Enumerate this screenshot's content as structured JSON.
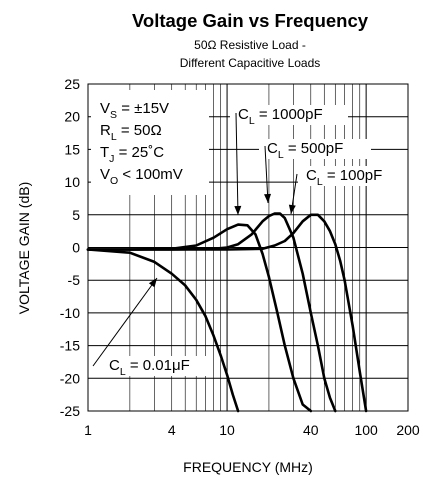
{
  "chart_data": {
    "type": "line",
    "title": "Voltage Gain vs Frequency",
    "subtitle_lines": [
      "50Ω Resistive Load -",
      "Different Capacitive Loads"
    ],
    "xlabel": "FREQUENCY (MHz)",
    "ylabel": "VOLTAGE GAIN (dB)",
    "x_scale": "log",
    "xlim": [
      1,
      200
    ],
    "ylim": [
      -25,
      25
    ],
    "x_ticks": [
      1,
      4,
      10,
      40,
      100,
      200
    ],
    "x_tick_labels": [
      "1",
      "4",
      "10",
      "40",
      "100",
      "200"
    ],
    "y_ticks": [
      25,
      20,
      15,
      10,
      5,
      0,
      -5,
      -10,
      -15,
      -20,
      -25
    ],
    "y_tick_labels": [
      "25",
      "20",
      "15",
      "10",
      "5",
      "0",
      "-5",
      "-10",
      "-15",
      "-20",
      "-25"
    ],
    "grid": true,
    "conditions": [
      {
        "main": "V",
        "sub": "S",
        "rest": " = ±15V"
      },
      {
        "main": "R",
        "sub": "L",
        "rest": " = 50Ω"
      },
      {
        "main": "T",
        "sub": "J",
        "rest": " = 25˚C"
      },
      {
        "main": "V",
        "sub": "O",
        "rest": " < 100mV"
      }
    ],
    "series": [
      {
        "label_main": "C",
        "label_sub": "L",
        "label_rest": " = 1000pF",
        "x": [
          1,
          2,
          4,
          6,
          8,
          10,
          12,
          14,
          16,
          18,
          20,
          23,
          26,
          30,
          35,
          40
        ],
        "y": [
          -0.3,
          -0.3,
          -0.2,
          0.3,
          1.5,
          2.8,
          3.5,
          3.4,
          2.0,
          -1.0,
          -4.5,
          -10.0,
          -15.0,
          -20.0,
          -24.0,
          -25.0
        ]
      },
      {
        "label_main": "C",
        "label_sub": "L",
        "label_rest": " = 500pF",
        "x": [
          1,
          4,
          8,
          10,
          12,
          15,
          18,
          20,
          22,
          24,
          26,
          30,
          35,
          40,
          45,
          50,
          55,
          60
        ],
        "y": [
          -0.3,
          -0.3,
          -0.2,
          0.0,
          0.5,
          2.0,
          4.0,
          4.8,
          5.2,
          5.2,
          4.5,
          1.5,
          -4.0,
          -10.0,
          -15.0,
          -20.0,
          -23.0,
          -25.0
        ]
      },
      {
        "label_main": "C",
        "label_sub": "L",
        "label_rest": " = 100pF",
        "x": [
          1,
          10,
          18,
          22,
          26,
          30,
          35,
          40,
          45,
          50,
          55,
          60,
          65,
          70,
          80,
          90,
          100
        ],
        "y": [
          -0.3,
          -0.3,
          -0.2,
          0.3,
          1.0,
          2.2,
          4.0,
          5.0,
          5.0,
          4.0,
          2.5,
          0.5,
          -2.0,
          -5.0,
          -12.0,
          -19.0,
          -25.0
        ]
      },
      {
        "label_main": "C",
        "label_sub": "L",
        "label_rest": " = 0.01μF",
        "x": [
          1,
          2,
          3,
          4,
          5,
          6,
          7,
          8,
          9,
          10,
          11,
          12
        ],
        "y": [
          -0.3,
          -0.8,
          -2.2,
          -4.0,
          -5.8,
          -8.0,
          -10.5,
          -13.5,
          -16.5,
          -19.5,
          -22.5,
          -25.0
        ]
      }
    ]
  }
}
